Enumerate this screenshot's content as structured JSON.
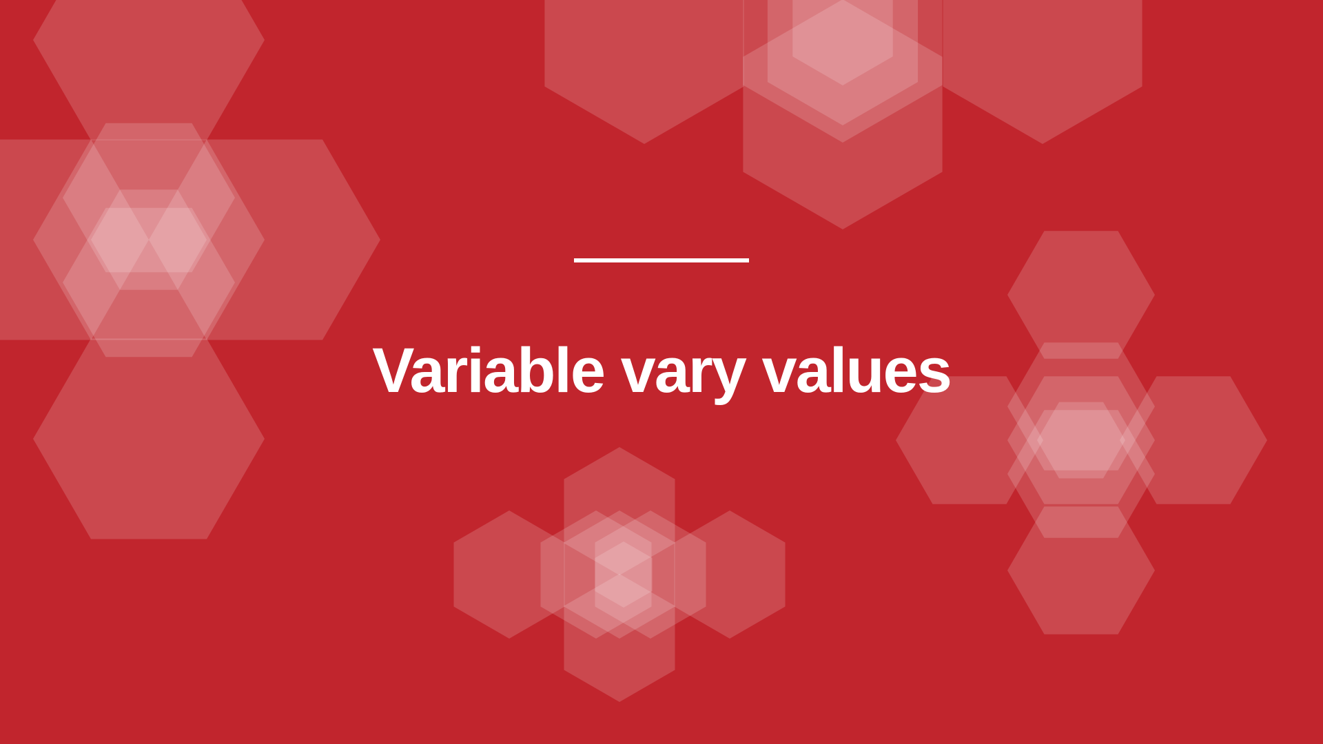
{
  "slide": {
    "title": "Variable vary values",
    "background_color": "#c1252d",
    "accent_color": "#ffffff"
  }
}
